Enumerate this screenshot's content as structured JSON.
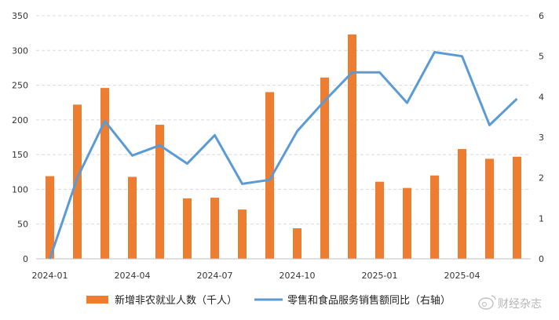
{
  "chart_data": {
    "type": "bar+line",
    "x": [
      "2024-01",
      "2024-02",
      "2024-03",
      "2024-04",
      "2024-05",
      "2024-06",
      "2024-07",
      "2024-08",
      "2024-09",
      "2024-10",
      "2024-11",
      "2024-12",
      "2025-01",
      "2025-02",
      "2025-03",
      "2025-04",
      "2025-05",
      "2025-06"
    ],
    "x_tick_labels": [
      "2024-01",
      "2024-04",
      "2024-07",
      "2024-10",
      "2025-01",
      "2025-04"
    ],
    "series": [
      {
        "name": "新增非农就业人数（千人）",
        "type": "bar",
        "axis": "left",
        "color": "#ED7D31",
        "values": [
          119,
          222,
          246,
          118,
          193,
          87,
          88,
          71,
          240,
          44,
          261,
          323,
          111,
          102,
          120,
          158,
          144,
          147
        ]
      },
      {
        "name": "零售和食品服务销售额同比（右轴）",
        "type": "line",
        "axis": "right",
        "color": "#5B9BD5",
        "values": [
          0.0,
          2.0,
          3.4,
          2.55,
          2.8,
          2.35,
          3.05,
          1.85,
          1.95,
          3.15,
          3.9,
          4.6,
          4.6,
          3.85,
          5.1,
          5.0,
          3.3,
          3.95
        ]
      }
    ],
    "y_left": {
      "min": 0,
      "max": 350,
      "ticks": [
        0,
        50,
        100,
        150,
        200,
        250,
        300,
        350
      ]
    },
    "y_right": {
      "min": 0,
      "max": 6,
      "ticks": [
        0,
        1,
        2,
        3,
        4,
        5,
        6
      ]
    },
    "grid": "horizontal dashed",
    "legend": "bottom"
  },
  "watermark": {
    "text": "财经杂志",
    "icon": "weibo-icon"
  }
}
